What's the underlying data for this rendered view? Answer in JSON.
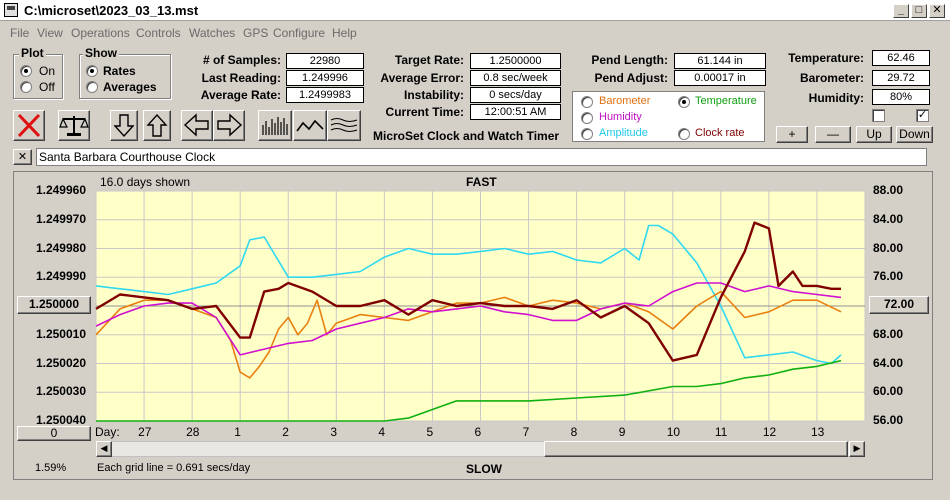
{
  "window": {
    "title": "C:\\microset\\2023_03_13.mst"
  },
  "menu": [
    "File",
    "View",
    "Operations",
    "Controls",
    "Watches",
    "GPS",
    "Configure",
    "Help"
  ],
  "plot_group": {
    "title": "Plot",
    "on": "On",
    "off": "Off",
    "selected": "On"
  },
  "show_group": {
    "title": "Show",
    "rates": "Rates",
    "averages": "Averages",
    "selected": "Rates"
  },
  "stats": {
    "samples_label": "# of Samples:",
    "samples": "22980",
    "last_reading_label": "Last Reading:",
    "last_reading": "1.249996",
    "average_rate_label": "Average Rate:",
    "average_rate": "1.2499983"
  },
  "rates": {
    "target_rate_label": "Target Rate:",
    "target_rate": "1.2500000",
    "average_error_label": "Average Error:",
    "average_error": "0.8 sec/week",
    "instability_label": "Instability:",
    "instability": "0 secs/day",
    "current_time_label": "Current Time:",
    "current_time": "12:00:51 AM",
    "app_caption": "MicroSet Clock and Watch Timer"
  },
  "pendulum": {
    "length_label": "Pend Length:",
    "length": "61.144 in",
    "adjust_label": "Pend Adjust:",
    "adjust": "0.00017 in"
  },
  "sensors": {
    "temperature_label": "Temperature:",
    "temperature": "62.46",
    "barometer_label": "Barometer:",
    "barometer": "29.72",
    "humidity_label": "Humidity:",
    "humidity": "80%",
    "check1": false,
    "check2": true
  },
  "overlay_options": [
    {
      "label": "Barometer",
      "color": "#e07010",
      "selected": false
    },
    {
      "label": "Temperature",
      "color": "#10a010",
      "selected": true
    },
    {
      "label": "Humidity",
      "color": "#c010c0",
      "selected": false
    },
    {
      "label": "Amplitude",
      "color": "#20c8e8",
      "selected": false
    },
    {
      "label": "Clock rate",
      "color": "#800000",
      "selected": false
    }
  ],
  "adjust_buttons": {
    "plus": "+",
    "minus": "—",
    "up": "Up",
    "down": "Down"
  },
  "description": {
    "close": "✕",
    "text": "Santa Barbara Courthouse Clock"
  },
  "chart": {
    "days_shown": "16.0 days shown",
    "top_label": "FAST",
    "bottom_label": "SLOW",
    "grid_note": "Each grid line = 0.691 secs/day",
    "corner_percent": "1.59%",
    "left_button": "1.250000",
    "left_bottom_button": "0",
    "right_button": "72.00",
    "day_label": "Day:"
  },
  "chart_data": {
    "type": "line",
    "left_axis_ticks": [
      "1.249960",
      "1.249970",
      "1.249980",
      "1.249990",
      "1.250000",
      "1.250010",
      "1.250020",
      "1.250030",
      "1.250040"
    ],
    "right_axis_ticks": [
      "88.00",
      "84.00",
      "80.00",
      "76.00",
      "72.00",
      "68.00",
      "64.00",
      "60.00",
      "56.00"
    ],
    "x_ticks": [
      "27",
      "28",
      "1",
      "2",
      "3",
      "4",
      "5",
      "6",
      "7",
      "8",
      "9",
      "10",
      "11",
      "12",
      "13"
    ],
    "xlim": [
      0,
      16
    ],
    "ylim_left": [
      1.24996,
      1.25004
    ],
    "ylim_right": [
      56,
      88
    ],
    "grid": true,
    "series": [
      {
        "name": "Amplitude",
        "color": "#30d8f0",
        "x": [
          0,
          0.5,
          1,
          1.5,
          2,
          2.5,
          3,
          3.2,
          3.5,
          4,
          4.5,
          5,
          5.5,
          6,
          6.5,
          7,
          7.5,
          8,
          8.5,
          9,
          9.5,
          10,
          10.5,
          11,
          11.3,
          11.5,
          11.7,
          12,
          12.5,
          13,
          13.5,
          14,
          14.5,
          15,
          15.3,
          15.5
        ],
        "y": [
          1.249993,
          1.249994,
          1.249995,
          1.249996,
          1.249994,
          1.249992,
          1.249986,
          1.249977,
          1.249976,
          1.24999,
          1.24999,
          1.249989,
          1.249988,
          1.249983,
          1.24998,
          1.249982,
          1.249982,
          1.249981,
          1.24998,
          1.249982,
          1.249981,
          1.249984,
          1.249985,
          1.24998,
          1.249984,
          1.249972,
          1.249972,
          1.249975,
          1.249985,
          1.25,
          1.250018,
          1.250017,
          1.250016,
          1.250019,
          1.25002,
          1.250017
        ]
      },
      {
        "name": "Barometer",
        "color": "#e88010",
        "x": [
          0,
          0.5,
          1,
          1.5,
          2,
          2.5,
          2.8,
          3,
          3.2,
          3.4,
          3.6,
          3.8,
          4,
          4.2,
          4.4,
          4.6,
          4.8,
          5,
          5.5,
          6,
          6.5,
          7,
          7.5,
          8,
          8.5,
          9,
          9.5,
          10,
          10.5,
          11,
          11.5,
          12,
          12.5,
          13,
          13.5,
          14,
          14.5,
          15,
          15.5
        ],
        "y": [
          1.25001,
          1.250001,
          1.249998,
          1.249998,
          1.250001,
          1.250004,
          1.250012,
          1.250023,
          1.250025,
          1.250021,
          1.250016,
          1.250008,
          1.250004,
          1.25001,
          1.250006,
          1.249998,
          1.25001,
          1.250006,
          1.250003,
          1.250004,
          1.250005,
          1.250002,
          1.249999,
          1.249999,
          1.249997,
          1.25,
          1.249998,
          1.249999,
          1.250001,
          1.249999,
          1.250002,
          1.250008,
          1.25,
          1.249995,
          1.250004,
          1.250002,
          1.249998,
          1.249998,
          1.250002
        ]
      },
      {
        "name": "Humidity",
        "color": "#d010d0",
        "x": [
          0,
          0.5,
          1,
          1.5,
          2,
          2.5,
          3,
          3.5,
          4,
          4.5,
          5,
          5.5,
          6,
          6.5,
          7,
          7.5,
          8,
          8.5,
          9,
          9.5,
          10,
          10.5,
          11,
          11.5,
          12,
          12.5,
          13,
          13.5,
          14,
          14.5,
          15,
          15.5
        ],
        "y": [
          1.250007,
          1.250003,
          1.25,
          1.249999,
          1.249999,
          1.250004,
          1.250017,
          1.250015,
          1.250013,
          1.250012,
          1.250008,
          1.250006,
          1.250004,
          1.250001,
          1.250002,
          1.250001,
          1.25,
          1.250002,
          1.250003,
          1.250005,
          1.250005,
          1.250001,
          1.249999,
          1.25,
          1.249995,
          1.249992,
          1.249992,
          1.249995,
          1.249993,
          1.249995,
          1.249996,
          1.249997
        ]
      },
      {
        "name": "Clock rate",
        "color": "#800000",
        "x": [
          0,
          0.5,
          1,
          1.5,
          2,
          2.5,
          3,
          3.2,
          3.5,
          3.8,
          4,
          4.5,
          5,
          5.5,
          6,
          6.5,
          7,
          7.5,
          8,
          8.5,
          9,
          9.5,
          10,
          10.5,
          11,
          11.5,
          12,
          12.5,
          13,
          13.5,
          13.7,
          14,
          14.2,
          14.5,
          14.7,
          15,
          15.3,
          15.5
        ],
        "y": [
          1.250001,
          1.249996,
          1.249997,
          1.249998,
          1.250001,
          1.25,
          1.250011,
          1.250011,
          1.249995,
          1.249994,
          1.249992,
          1.249995,
          1.25,
          1.25,
          1.249998,
          1.250003,
          1.249998,
          1.25,
          1.249999,
          1.25,
          1.25,
          1.250001,
          1.249998,
          1.250004,
          1.25,
          1.250006,
          1.250019,
          1.250017,
          1.249997,
          1.249981,
          1.249971,
          1.249973,
          1.249993,
          1.249988,
          1.249993,
          1.249993,
          1.249994,
          1.249994
        ]
      },
      {
        "name": "Temperature",
        "color": "#10b010",
        "x": [
          0,
          1,
          2,
          3,
          4,
          5,
          6,
          6.5,
          7,
          7.5,
          8,
          9,
          10,
          11,
          12,
          12.5,
          13,
          13.5,
          14,
          14.5,
          15,
          15.5
        ],
        "y": [
          1.25004,
          1.25004,
          1.25004,
          1.25004,
          1.25004,
          1.25004,
          1.25004,
          1.250039,
          1.250036,
          1.250033,
          1.250033,
          1.250033,
          1.250032,
          1.250031,
          1.250028,
          1.250028,
          1.250027,
          1.250025,
          1.250024,
          1.250022,
          1.250021,
          1.250019
        ]
      }
    ]
  }
}
